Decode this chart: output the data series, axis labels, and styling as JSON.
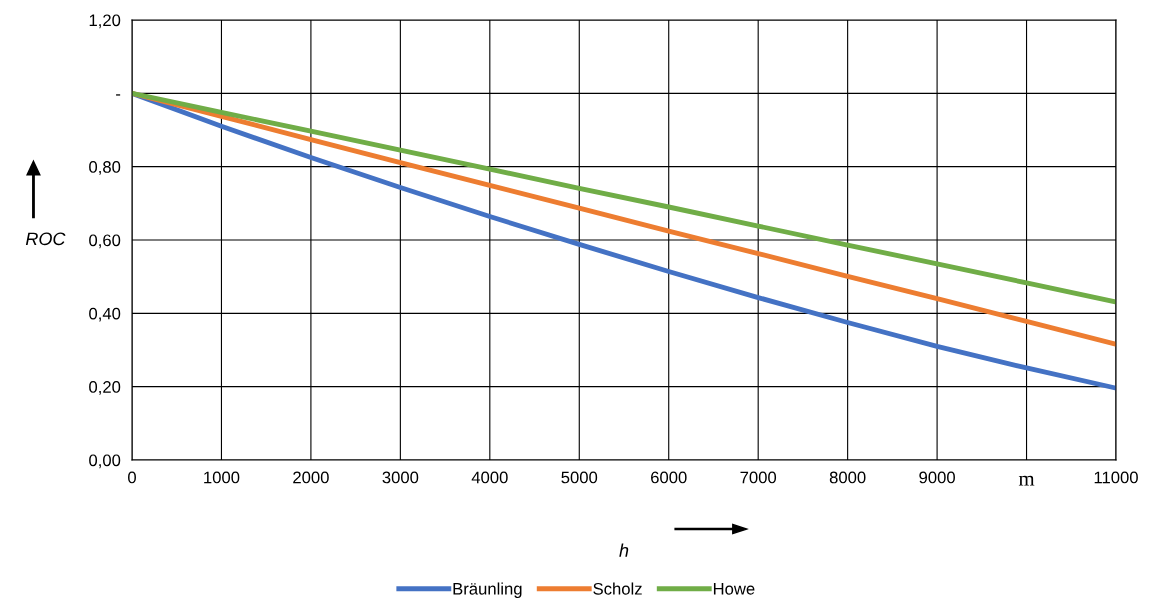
{
  "chart_data": {
    "type": "line",
    "xlabel": "h",
    "ylabel": "ROC",
    "x": [
      0,
      1000,
      2000,
      3000,
      4000,
      5000,
      6000,
      7000,
      8000,
      9000,
      10000,
      11000
    ],
    "series": [
      {
        "name": "Bräunling",
        "color": "#4472c4",
        "values": [
          1.0,
          0.91,
          0.825,
          0.743,
          0.664,
          0.588,
          0.514,
          0.443,
          0.375,
          0.31,
          0.251,
          0.196
        ]
      },
      {
        "name": "Scholz",
        "color": "#ed7d31",
        "values": [
          1.0,
          0.937,
          0.874,
          0.811,
          0.749,
          0.687,
          0.624,
          0.563,
          0.501,
          0.44,
          0.378,
          0.316
        ]
      },
      {
        "name": "Howe",
        "color": "#70ad47",
        "values": [
          1.0,
          0.948,
          0.897,
          0.845,
          0.793,
          0.741,
          0.69,
          0.638,
          0.586,
          0.535,
          0.483,
          0.431
        ]
      }
    ],
    "xlim": [
      0,
      11000
    ],
    "xticks": [
      0,
      1000,
      2000,
      3000,
      4000,
      5000,
      6000,
      7000,
      8000,
      9000,
      {
        "value": 10000,
        "label": "m"
      },
      11000
    ],
    "ylim": [
      0,
      1.2
    ],
    "yticks": [
      {
        "value": 0,
        "label": "0,00"
      },
      {
        "value": 0.2,
        "label": "0,20"
      },
      {
        "value": 0.4,
        "label": "0,40"
      },
      {
        "value": 0.6,
        "label": "0,60"
      },
      {
        "value": 0.8,
        "label": "0,80"
      },
      {
        "value": 1.0,
        "label": "-"
      },
      {
        "value": 1.2,
        "label": "1,20"
      }
    ],
    "grid": true,
    "legend": "bottom",
    "marker": "none",
    "line_style": "solid"
  }
}
